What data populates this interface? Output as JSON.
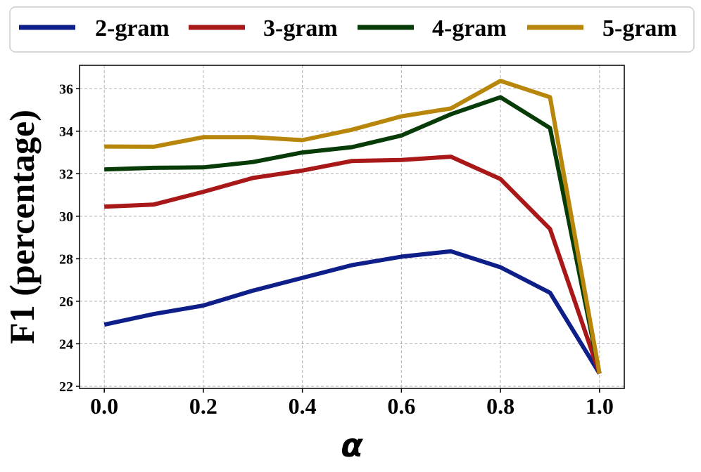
{
  "chart_data": {
    "type": "line",
    "title": "",
    "xlabel": "α",
    "ylabel": "F1 (percentage)",
    "x": [
      0.0,
      0.1,
      0.2,
      0.3,
      0.4,
      0.5,
      0.6,
      0.7,
      0.8,
      0.9,
      1.0
    ],
    "xlim": [
      -0.05,
      1.05
    ],
    "ylim": [
      21.9,
      37.1
    ],
    "xticks": [
      0.0,
      0.2,
      0.4,
      0.6,
      0.8,
      1.0
    ],
    "xtick_labels": [
      "0.0",
      "0.2",
      "0.4",
      "0.6",
      "0.8",
      "1.0"
    ],
    "yticks": [
      22,
      24,
      26,
      28,
      30,
      32,
      34,
      36
    ],
    "ytick_labels": [
      "22",
      "24",
      "26",
      "28",
      "30",
      "32",
      "34",
      "36"
    ],
    "grid": true,
    "legend_position": "top",
    "series": [
      {
        "name": "2-gram",
        "color": "#0f1f8a",
        "values": [
          24.9,
          25.4,
          25.8,
          26.5,
          27.1,
          27.7,
          28.1,
          28.35,
          27.6,
          26.4,
          22.6
        ]
      },
      {
        "name": "3-gram",
        "color": "#a81818",
        "values": [
          30.45,
          30.55,
          31.15,
          31.8,
          32.15,
          32.6,
          32.65,
          32.8,
          31.75,
          29.4,
          22.6
        ]
      },
      {
        "name": "4-gram",
        "color": "#073b07",
        "values": [
          32.2,
          32.28,
          32.3,
          32.55,
          33.0,
          33.25,
          33.8,
          34.8,
          35.6,
          34.15,
          22.6
        ]
      },
      {
        "name": "5-gram",
        "color": "#b8860b",
        "values": [
          33.28,
          33.27,
          33.72,
          33.72,
          33.58,
          34.07,
          34.7,
          35.07,
          36.37,
          35.6,
          22.6
        ]
      }
    ]
  }
}
